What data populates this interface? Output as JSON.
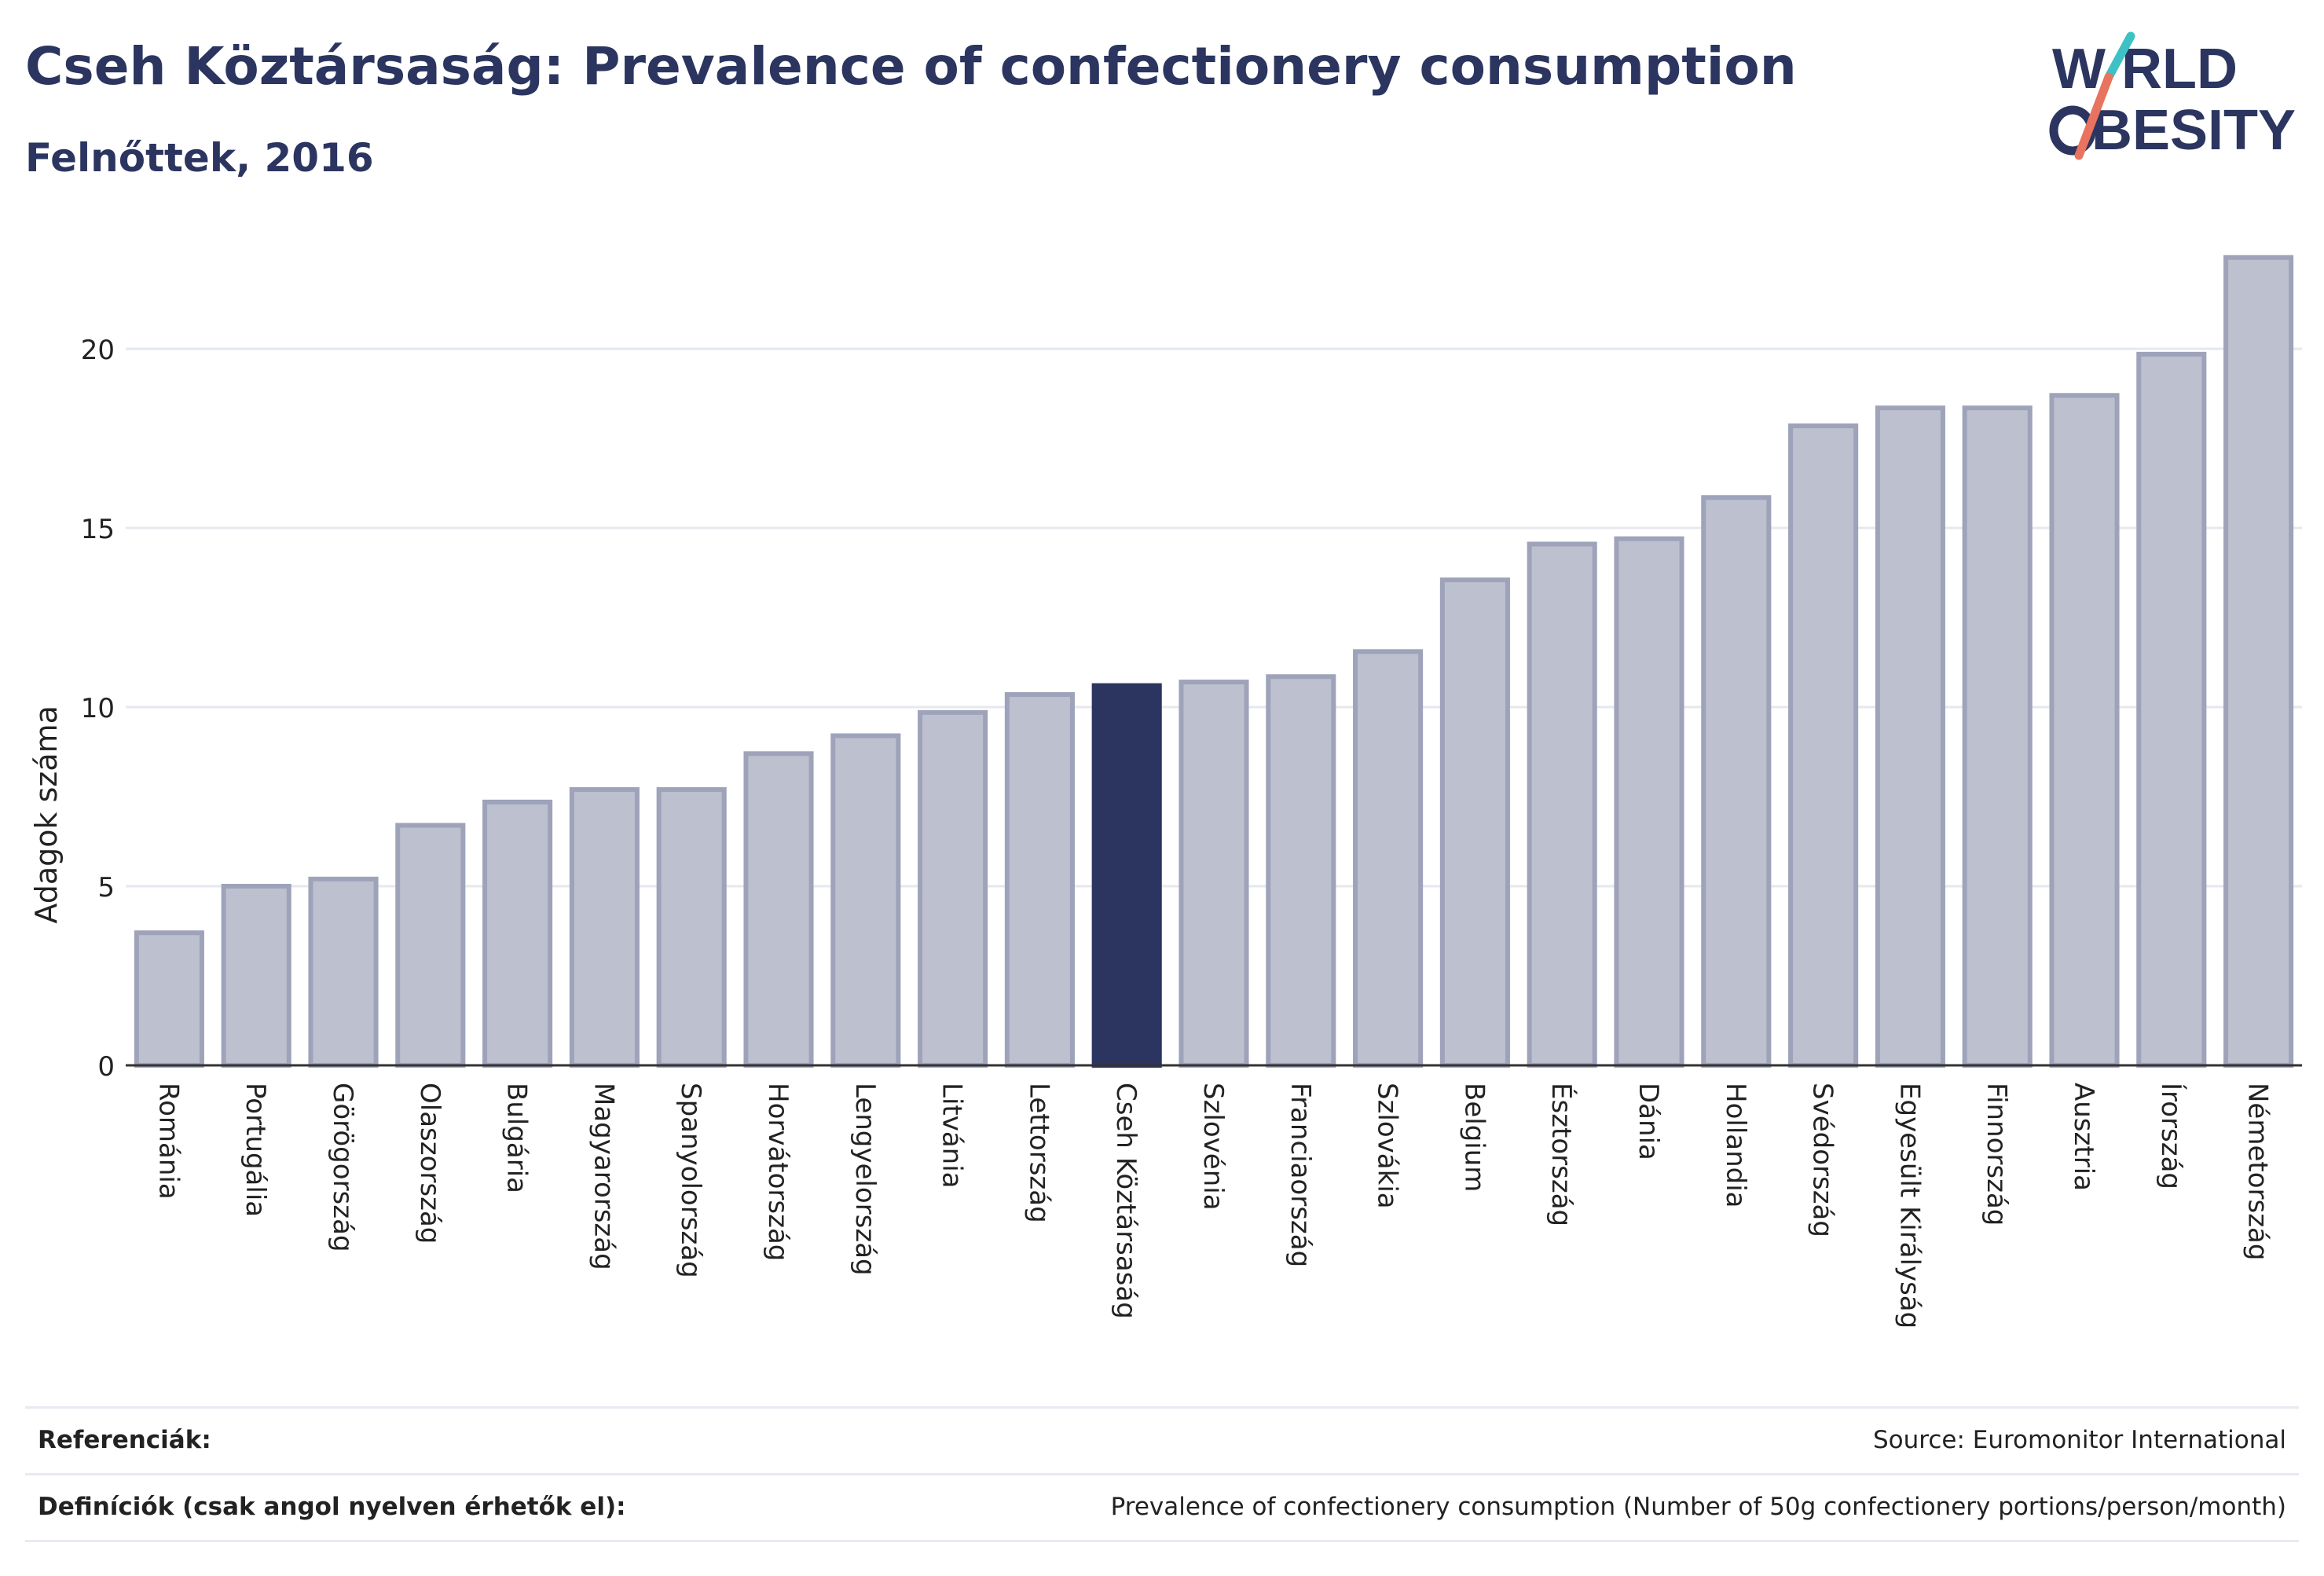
{
  "header": {
    "title": "Cseh Köztársaság: Prevalence of confectionery consumption",
    "subtitle": "Felnőttek, 2016"
  },
  "logo": {
    "line1": "W RLD",
    "line2": "BESITY",
    "name": "world-obesity-logo"
  },
  "colors": {
    "highlight": "#2b3560",
    "bar_fill": "#bdc0cf",
    "bar_stroke": "#9ea3ba",
    "title": "#2b3560",
    "logo_teal": "#3ec1c4",
    "logo_coral": "#e8735f"
  },
  "chart_data": {
    "type": "bar",
    "title": "Cseh Köztársaság: Prevalence of confectionery consumption",
    "subtitle": "Felnőttek, 2016",
    "xlabel": "",
    "ylabel": "Adagok száma",
    "ylim": [
      0,
      22.6
    ],
    "yticks": [
      0,
      5,
      10,
      15,
      20
    ],
    "grid": true,
    "highlight": "Cseh Köztársaság",
    "categories": [
      "Románia",
      "Portugália",
      "Görögország",
      "Olaszország",
      "Bulgária",
      "Magyarország",
      "Spanyolország",
      "Horvátország",
      "Lengyelország",
      "Litvánia",
      "Lettország",
      "Cseh Köztársaság",
      "Szlovénia",
      "Franciaország",
      "Szlovákia",
      "Belgium",
      "Észtország",
      "Dánia",
      "Hollandia",
      "Svédország",
      "Egyesült Királyság",
      "Finnország",
      "Ausztria",
      "Írország",
      "Németország"
    ],
    "values": [
      3.7,
      5.0,
      5.2,
      6.7,
      7.35,
      7.7,
      7.7,
      8.7,
      9.2,
      9.85,
      10.35,
      10.6,
      10.7,
      10.85,
      11.55,
      13.55,
      14.55,
      14.7,
      15.85,
      17.85,
      18.35,
      18.35,
      18.7,
      19.85,
      22.55
    ]
  },
  "references": {
    "ref_label": "Referenciák:",
    "ref_value": "Source: Euromonitor International",
    "def_label": "Definíciók (csak angol nyelven érhetők el):",
    "def_value": "Prevalence of confectionery consumption (Number of 50g confectionery portions/person/month)"
  }
}
